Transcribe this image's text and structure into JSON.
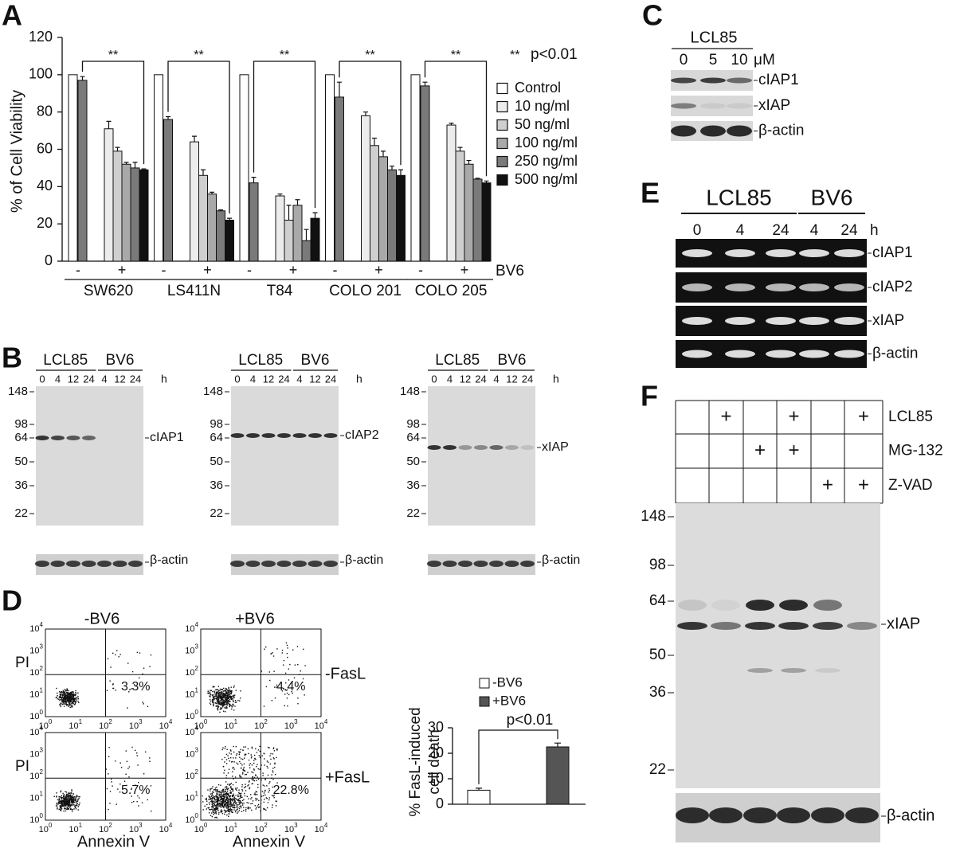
{
  "panel_letters": [
    "A",
    "B",
    "C",
    "D",
    "E",
    "F"
  ],
  "chart_data": [
    {
      "type": "bar",
      "y_label": "% of Cell Viability",
      "categories": [
        "SW620",
        "LS411N",
        "T84",
        "COLO 201",
        "COLO 205"
      ],
      "treatment_labels": [
        "-",
        "+"
      ],
      "treatment_axis_label": "BV6",
      "bracket_label": "**",
      "annotation": "p<0.01",
      "ylim": [
        0,
        120
      ],
      "yticks": [
        0,
        20,
        40,
        60,
        80,
        100,
        120
      ],
      "series": [
        {
          "name": "Control",
          "color": "#ffffff",
          "values": [
            100,
            100,
            100,
            100,
            100
          ]
        },
        {
          "name": "10 ng/ml",
          "color": "#ececec",
          "values": [
            71,
            64,
            35,
            78,
            73
          ],
          "errors": [
            4,
            3,
            1,
            2,
            1
          ]
        },
        {
          "name": "50 ng/ml",
          "color": "#cfcfcf",
          "values": [
            59,
            46,
            22,
            62,
            59
          ],
          "errors": [
            2,
            3,
            8,
            4,
            2
          ]
        },
        {
          "name": "100 ng/ml",
          "color": "#a9a9a9",
          "values": [
            52,
            36,
            30,
            56,
            52
          ],
          "errors": [
            1,
            1,
            3,
            3,
            2
          ]
        },
        {
          "name": "250 ng/ml",
          "color": "#7a7a7a",
          "values": [
            50,
            27,
            11,
            49,
            44
          ],
          "errors": [
            3,
            0.5,
            6,
            2,
            0.5
          ]
        },
        {
          "name": "500 ng/ml",
          "color": "#111111",
          "values": [
            49,
            22,
            23,
            46,
            42
          ],
          "errors": [
            0.5,
            1,
            3,
            3,
            1
          ]
        },
        {
          "color": "#7a7a7a",
          "values": [
            97,
            76,
            42,
            88,
            94
          ],
          "errors": [
            2,
            1.5,
            3,
            8,
            2
          ]
        }
      ]
    },
    {
      "type": "bar",
      "y_label": [
        "% FasL-induced",
        "cell death"
      ],
      "annotation": "p<0.01",
      "ylim": [
        0,
        30
      ],
      "yticks": [
        0,
        10,
        20,
        30
      ],
      "series": [
        {
          "name": "-BV6",
          "color": "#ffffff",
          "values": [
            5.5
          ],
          "errors": [
            0.8
          ]
        },
        {
          "name": "+BV6",
          "color": "#555555",
          "values": [
            22.5
          ],
          "errors": [
            1.5
          ]
        }
      ]
    }
  ],
  "panels": {
    "B": {
      "blots": [
        {
          "groups": [
            "LCL85",
            "BV6"
          ],
          "lanes": [
            "0",
            "4",
            "12",
            "24",
            "4",
            "12",
            "24"
          ],
          "unit": "h",
          "mw": [
            "148",
            "98",
            "64",
            "50",
            "36",
            "22"
          ],
          "protein": "cIAP1",
          "loading": "β-actin"
        },
        {
          "groups": [
            "LCL85",
            "BV6"
          ],
          "lanes": [
            "0",
            "4",
            "12",
            "24",
            "4",
            "12",
            "24"
          ],
          "unit": "h",
          "mw": [
            "148",
            "98",
            "64",
            "50",
            "36",
            "22"
          ],
          "protein": "cIAP2",
          "loading": "β-actin"
        },
        {
          "groups": [
            "LCL85",
            "BV6"
          ],
          "lanes": [
            "0",
            "4",
            "12",
            "24",
            "4",
            "12",
            "24"
          ],
          "unit": "h",
          "mw": [
            "148",
            "98",
            "64",
            "50",
            "36",
            "22"
          ],
          "protein": "xIAP",
          "loading": "β-actin"
        }
      ]
    },
    "C": {
      "header": "LCL85",
      "doses": [
        "0",
        "5",
        "10"
      ],
      "unit": "μM",
      "proteins": [
        "cIAP1",
        "xIAP",
        "β-actin"
      ]
    },
    "D": {
      "conditions": [
        "-BV6",
        "+BV6"
      ],
      "rows": [
        "-FasL",
        "+FasL"
      ],
      "y_label": "PI",
      "x_label": "Annexin V",
      "percentages": [
        [
          "3.3%",
          "4.4%"
        ],
        [
          "5.7%",
          "22.8%"
        ]
      ],
      "log_ticks": {
        "base": "10",
        "exponents": [
          "0",
          "1",
          "2",
          "3",
          "4"
        ]
      }
    },
    "E": {
      "groups": [
        {
          "label": "LCL85",
          "times": [
            "0",
            "4",
            "24"
          ]
        },
        {
          "label": "BV6",
          "times": [
            "4",
            "24"
          ]
        }
      ],
      "unit": "h",
      "genes": [
        "cIAP1",
        "cIAP2",
        "xIAP",
        "β-actin"
      ]
    },
    "F": {
      "treatments": [
        {
          "label": "LCL85",
          "cells": [
            null,
            "+",
            null,
            "+",
            null,
            "+"
          ]
        },
        {
          "label": "MG-132",
          "cells": [
            null,
            null,
            "+",
            "+",
            null,
            null
          ]
        },
        {
          "label": "Z-VAD",
          "cells": [
            null,
            null,
            null,
            null,
            "+",
            "+"
          ]
        }
      ],
      "mw": [
        "148",
        "98",
        "64",
        "50",
        "36",
        "22"
      ],
      "protein": "xIAP",
      "loading": "β-actin"
    }
  }
}
